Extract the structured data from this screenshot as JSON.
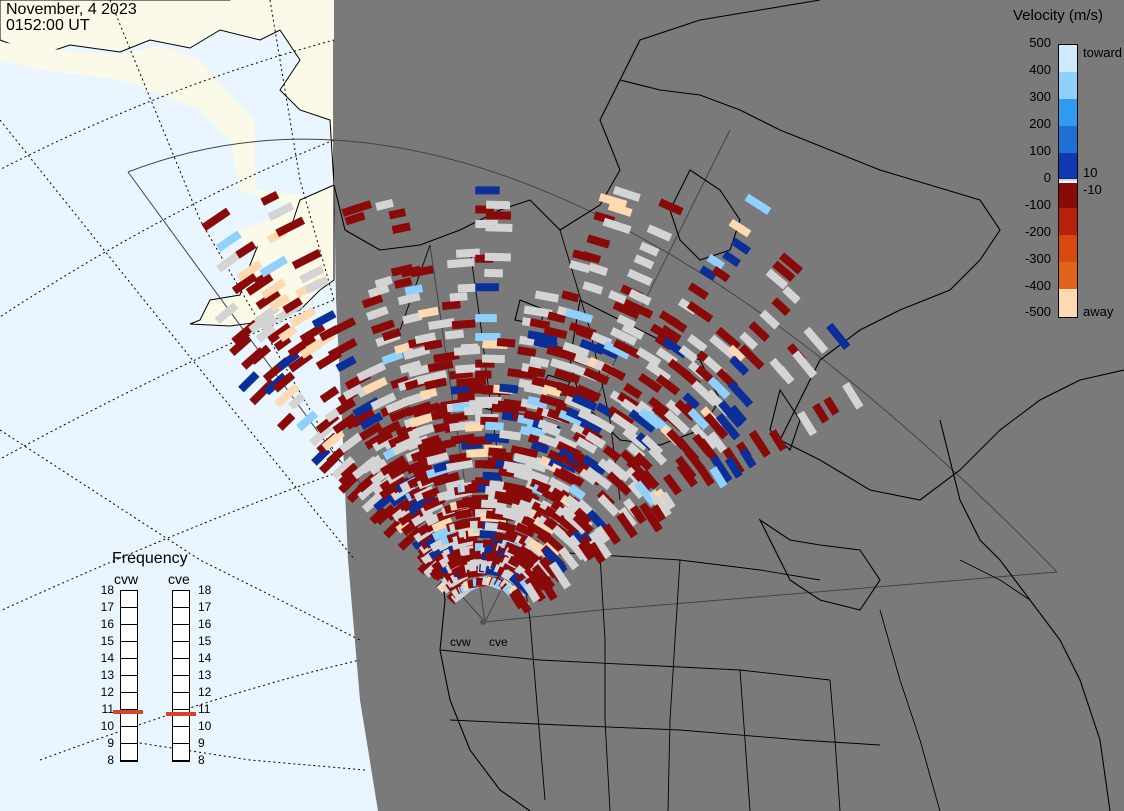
{
  "header": {
    "date": "November, 4 2023",
    "time": "0152:00 UT"
  },
  "colorbar": {
    "title": "Velocity (m/s)",
    "ticks": [
      "500",
      "400",
      "300",
      "200",
      "100",
      "0",
      "-100",
      "-200",
      "-300",
      "-400",
      "-500"
    ],
    "extra_ticks": [
      "10",
      "-10"
    ],
    "toward_label": "toward",
    "away_label": "away",
    "colors": {
      "toward_500": "#cfeaff",
      "toward_300": "#2f9cf0",
      "toward_100": "#0a2f9a",
      "zero": "#d4d4d4",
      "away_100": "#8a0a0a",
      "away_300": "#e0651a",
      "away_500": "#ffd9b0"
    }
  },
  "frequency_panel": {
    "title": "Frequency",
    "radars": [
      {
        "name": "cvw",
        "freq_mhz": 10.8
      },
      {
        "name": "cve",
        "freq_mhz": 10.7
      }
    ],
    "scale": [
      "18",
      "17",
      "16",
      "15",
      "14",
      "13",
      "12",
      "11",
      "10",
      "9",
      "8"
    ]
  },
  "radar_sites": [
    "cvw",
    "cve"
  ],
  "map_colors": {
    "ocean": "#e9f5ff",
    "night_side": "#7a7a7a",
    "land_day": "#fbfae8",
    "coastline": "#000000",
    "ground_scatter": "#d4d4d4"
  }
}
